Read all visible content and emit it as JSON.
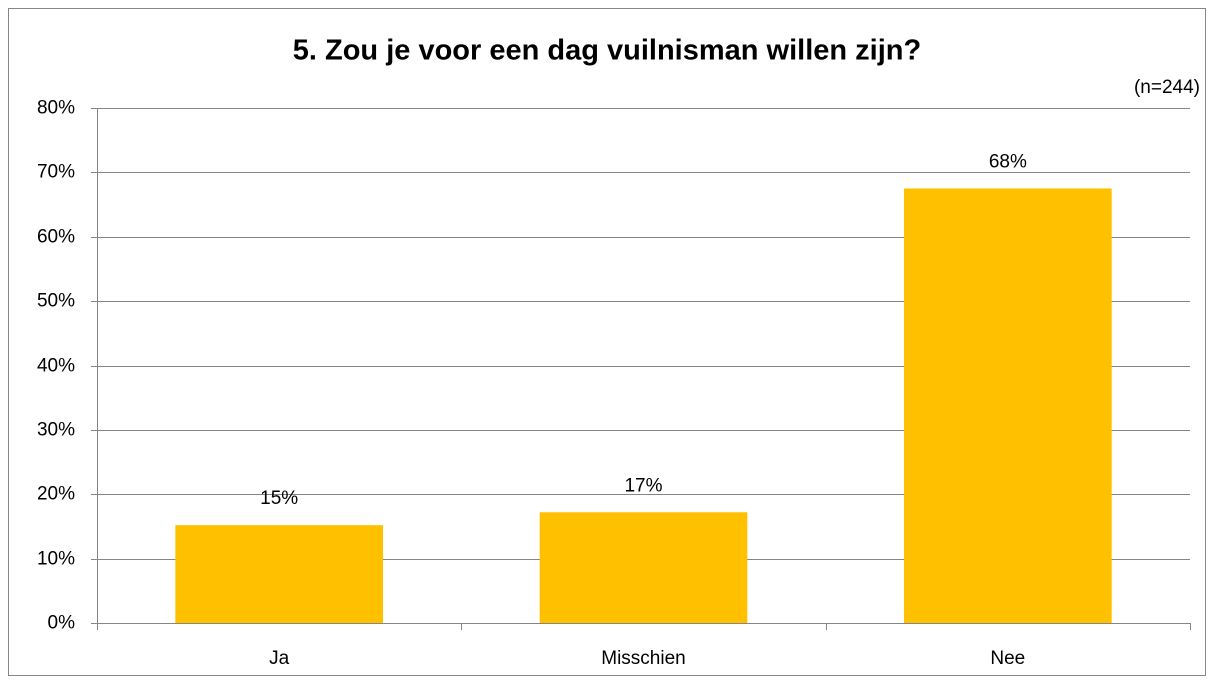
{
  "chart_data": {
    "type": "bar",
    "title": "5. Zou je voor een dag vuilnisman willen zijn?",
    "annotation": "(n=244)",
    "categories": [
      "Ja",
      "Misschien",
      "Nee"
    ],
    "values": [
      15.2,
      17.2,
      67.5
    ],
    "value_labels": [
      "15%",
      "17%",
      "68%"
    ],
    "color": "#ffc000",
    "ylim": [
      0,
      80
    ],
    "yticks": [
      {
        "value": 0,
        "label": "0%"
      },
      {
        "value": 10,
        "label": "10%"
      },
      {
        "value": 20,
        "label": "20%"
      },
      {
        "value": 30,
        "label": "30%"
      },
      {
        "value": 40,
        "label": "40%"
      },
      {
        "value": 50,
        "label": "50%"
      },
      {
        "value": 60,
        "label": "60%"
      },
      {
        "value": 70,
        "label": "70%"
      },
      {
        "value": 80,
        "label": "80%"
      }
    ],
    "grid": true
  }
}
